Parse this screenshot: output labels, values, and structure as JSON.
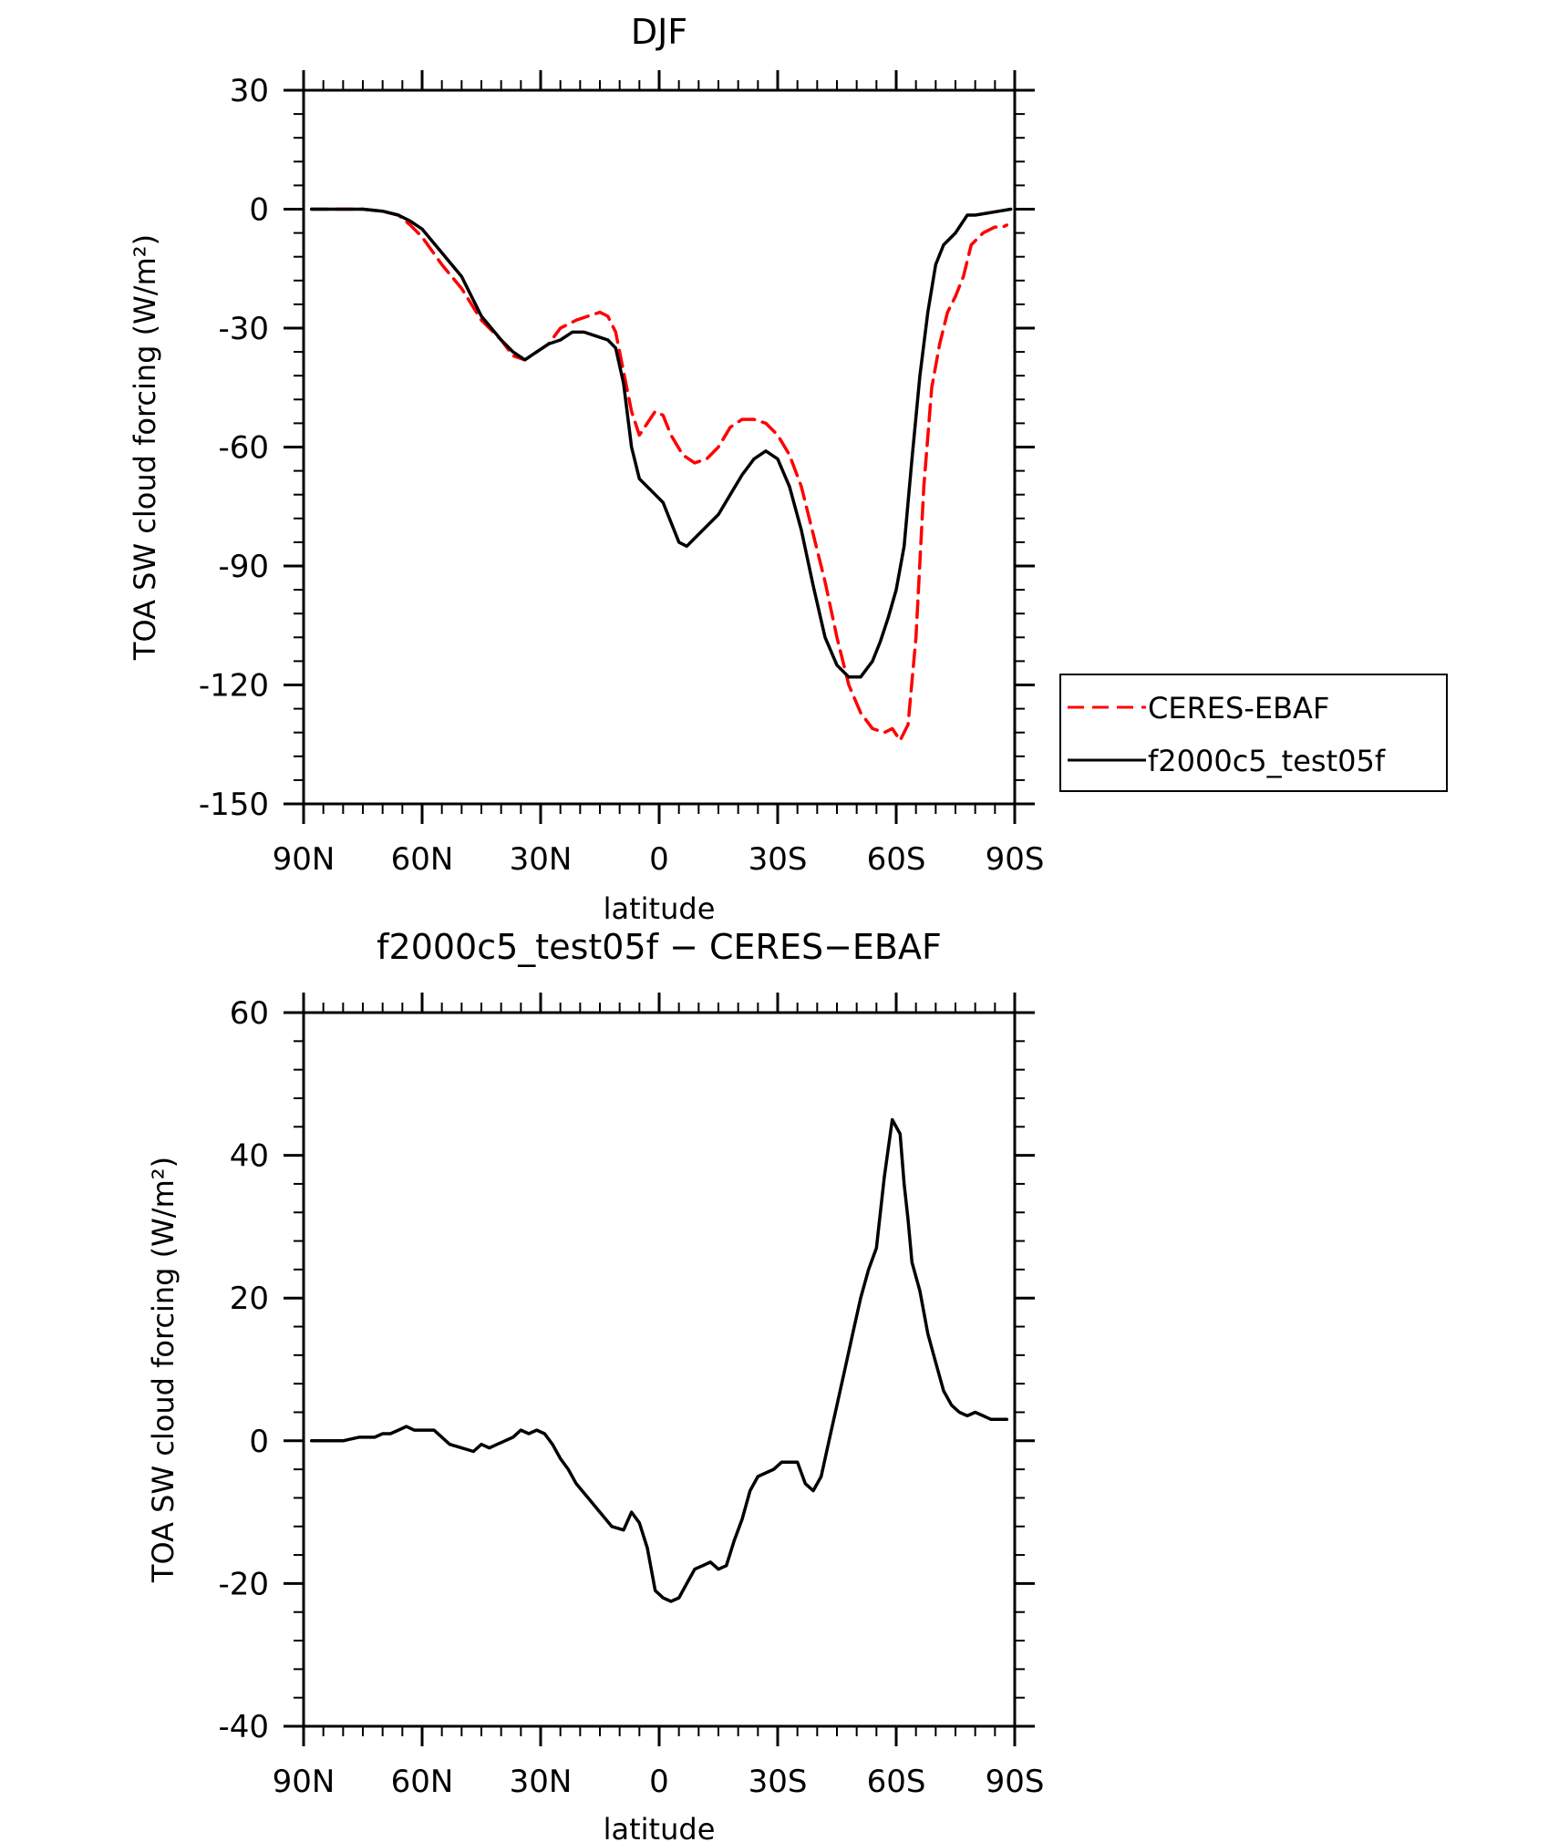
{
  "chart_data": [
    {
      "type": "line",
      "title": "DJF",
      "xlabel": "latitude",
      "ylabel": "TOA SW cloud forcing (W/m²)",
      "ylim": [
        -150,
        30
      ],
      "yticks": [
        30,
        0,
        -30,
        -60,
        -90,
        -120,
        -150
      ],
      "xlim": [
        90,
        -90
      ],
      "xticks": [
        90,
        60,
        30,
        0,
        -30,
        -60,
        -90
      ],
      "xticklabels": [
        "90N",
        "60N",
        "30N",
        "0",
        "30S",
        "60S",
        "90S"
      ],
      "legend_position": "right",
      "series": [
        {
          "name": "CERES-EBAF",
          "color": "#ff0000",
          "style": "dashed",
          "x": [
            88,
            80,
            75,
            70,
            66,
            63,
            60,
            55,
            50,
            45,
            40,
            37,
            34,
            31,
            28,
            25,
            21,
            18,
            15,
            13,
            11,
            9,
            7,
            5,
            3,
            1,
            -1,
            -3,
            -6,
            -9,
            -12,
            -15,
            -18,
            -21,
            -24,
            -27,
            -30,
            -33,
            -36,
            -39,
            -42,
            -45,
            -48,
            -51,
            -54,
            -57,
            -59,
            -61,
            -63,
            -65,
            -67,
            -69,
            -71,
            -73,
            -75,
            -77,
            -79,
            -82,
            -85,
            -87,
            -88
          ],
          "y": [
            0,
            0,
            0,
            -0.5,
            -1.5,
            -4,
            -7,
            -14,
            -20,
            -28,
            -33,
            -37,
            -38,
            -36,
            -34,
            -30,
            -28,
            -27,
            -26,
            -27,
            -31,
            -41,
            -51,
            -57,
            -54,
            -51,
            -52,
            -57,
            -62,
            -64,
            -63,
            -60,
            -55,
            -53,
            -53,
            -54,
            -57,
            -62,
            -70,
            -82,
            -94,
            -108,
            -120,
            -127,
            -131,
            -132,
            -131,
            -134,
            -130,
            -108,
            -70,
            -45,
            -34,
            -26,
            -22,
            -17,
            -9,
            -6,
            -4.5,
            -4.5,
            -4
          ]
        },
        {
          "name": "f2000c5_test05f",
          "color": "#000000",
          "style": "solid",
          "x": [
            88,
            80,
            75,
            70,
            66,
            63,
            60,
            55,
            50,
            45,
            40,
            37,
            34,
            31,
            28,
            25,
            22,
            19,
            16,
            13,
            11,
            9,
            7,
            5,
            3,
            1,
            -1,
            -3,
            -5,
            -7,
            -9,
            -12,
            -15,
            -18,
            -21,
            -24,
            -27,
            -30,
            -33,
            -36,
            -39,
            -42,
            -45,
            -48,
            -51,
            -54,
            -56,
            -58,
            -60,
            -62,
            -64,
            -66,
            -68,
            -70,
            -72,
            -75,
            -78,
            -80,
            -83,
            -86,
            -89
          ],
          "y": [
            0,
            0,
            0,
            -0.5,
            -1.5,
            -3,
            -5,
            -11,
            -17,
            -27,
            -33,
            -36,
            -38,
            -36,
            -34,
            -33,
            -31,
            -31,
            -32,
            -33,
            -35,
            -44,
            -60,
            -68,
            -70,
            -72,
            -74,
            -79,
            -84,
            -85,
            -83,
            -80,
            -77,
            -72,
            -67,
            -63,
            -61,
            -63,
            -70,
            -81,
            -95,
            -108,
            -115,
            -118,
            -118,
            -114,
            -109,
            -103,
            -96,
            -85,
            -63,
            -42,
            -26,
            -14,
            -9,
            -6,
            -1.5,
            -1.5,
            -1,
            -0.5,
            0
          ]
        }
      ]
    },
    {
      "type": "line",
      "title": "f2000c5_test05f − CERES−EBAF",
      "xlabel": "latitude",
      "ylabel": "TOA SW cloud forcing (W/m²)",
      "ylim": [
        -40,
        60
      ],
      "yticks": [
        60,
        40,
        20,
        0,
        -20,
        -40
      ],
      "xlim": [
        90,
        -90
      ],
      "xticks": [
        90,
        60,
        30,
        0,
        -30,
        -60,
        -90
      ],
      "xticklabels": [
        "90N",
        "60N",
        "30N",
        "0",
        "30S",
        "60S",
        "90S"
      ],
      "series": [
        {
          "color": "#000000",
          "style": "solid",
          "x": [
            88,
            84,
            80,
            76,
            72,
            70,
            68,
            66,
            64,
            62,
            60,
            57,
            55,
            53,
            50,
            47,
            45,
            43,
            41,
            39,
            37,
            35,
            33,
            31,
            29,
            27,
            25,
            23,
            21,
            18,
            15,
            12,
            9,
            7,
            5,
            3,
            1,
            -1,
            -3,
            -5,
            -7,
            -9,
            -11,
            -13,
            -15,
            -17,
            -19,
            -21,
            -23,
            -25,
            -27,
            -29,
            -31,
            -33,
            -35,
            -37,
            -39,
            -41,
            -43,
            -45,
            -47,
            -49,
            -51,
            -53,
            -55,
            -57,
            -59,
            -61,
            -62,
            -63,
            -64,
            -66,
            -68,
            -70,
            -72,
            -74,
            -76,
            -78,
            -80,
            -82,
            -84,
            -86,
            -88
          ],
          "y": [
            0,
            0,
            0,
            0.5,
            0.5,
            1,
            1,
            1.5,
            2,
            1.5,
            1.5,
            1.5,
            0.5,
            -0.5,
            -1,
            -1.5,
            -0.5,
            -1,
            -0.5,
            0,
            0.5,
            1.5,
            1,
            1.5,
            1,
            -0.5,
            -2.5,
            -4,
            -6,
            -8,
            -10,
            -12,
            -12.5,
            -10,
            -11.5,
            -15,
            -21,
            -22,
            -22.5,
            -22,
            -20,
            -18,
            -17.5,
            -17,
            -18,
            -17.5,
            -14,
            -11,
            -7,
            -5,
            -4.5,
            -4,
            -3,
            -3,
            -3,
            -6,
            -7,
            -5,
            0,
            5,
            10,
            15,
            20,
            24,
            27,
            37,
            45,
            43,
            36,
            31,
            25,
            21,
            15,
            11,
            7,
            5,
            4,
            3.5,
            4,
            3.5,
            3,
            3,
            3
          ]
        }
      ]
    }
  ]
}
